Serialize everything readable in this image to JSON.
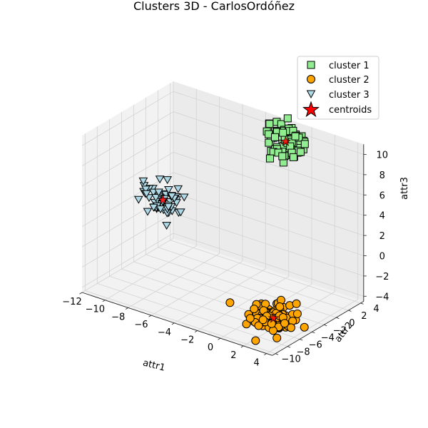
{
  "chart_data": {
    "type": "scatter3d",
    "title": "Clusters 3D - CarlosOrdóñez",
    "xlabel": "attr1",
    "ylabel": "attr2",
    "zlabel": "attr3",
    "xticks": [
      "−12",
      "−10",
      "−8",
      "−6",
      "−4",
      "−2",
      "0",
      "2",
      "4"
    ],
    "yticks": [
      "−10",
      "−8",
      "−6",
      "−4",
      "−2",
      "0",
      "2",
      "4"
    ],
    "zticks": [
      "−4",
      "−2",
      "0",
      "2",
      "4",
      "6",
      "8",
      "10"
    ],
    "xlim": [
      -12,
      4.5
    ],
    "ylim": [
      -10.5,
      4.5
    ],
    "zlim": [
      -4.5,
      11
    ],
    "grid": true,
    "legend_position": "upper right",
    "series": [
      {
        "name": "cluster 1",
        "marker": "square",
        "color": "#90ee90",
        "center": [
          -2,
          4,
          9
        ],
        "spread": [
          0.8,
          0.8,
          0.8
        ],
        "count": 80
      },
      {
        "name": "cluster 2",
        "marker": "circle",
        "color": "#ffa500",
        "center": [
          2.5,
          -6.5,
          -3
        ],
        "spread": [
          0.9,
          0.9,
          0.6
        ],
        "count": 100
      },
      {
        "name": "cluster 3",
        "marker": "triangle-down",
        "color": "#add8e6",
        "center": [
          -10,
          -1,
          2
        ],
        "spread": [
          0.8,
          0.8,
          0.8
        ],
        "count": 60
      }
    ],
    "centroids": {
      "name": "centroids",
      "marker": "star",
      "color": "#ff0000",
      "points": [
        [
          -2,
          4,
          9
        ],
        [
          2.5,
          -6.5,
          -3
        ],
        [
          -10,
          -1,
          2
        ]
      ]
    }
  }
}
